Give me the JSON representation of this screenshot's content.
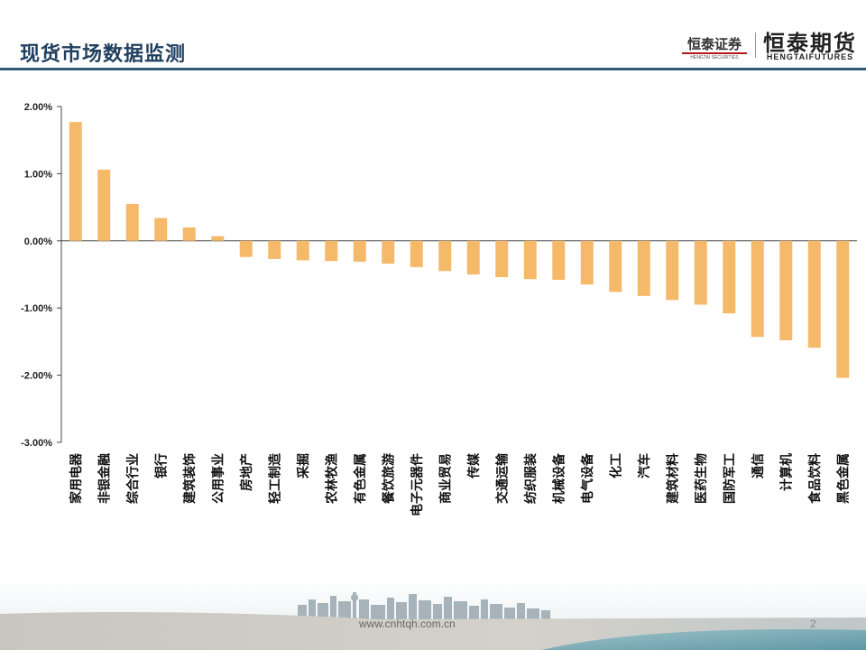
{
  "header": {
    "title": "现货市场数据监测",
    "logo_left": {
      "name": "恒泰证券",
      "sub": "HENGTAI SECURITIES"
    },
    "logo_right": {
      "name": "恒泰期货",
      "sub": "HENGTAIFUTURES"
    }
  },
  "chart_data": {
    "type": "bar",
    "title": "",
    "xlabel": "",
    "ylabel": "",
    "ylim": [
      -3,
      2
    ],
    "yticks": [
      2,
      1,
      0,
      -1,
      -2,
      -3
    ],
    "ytick_labels": [
      "2.00%",
      "1.00%",
      "0.00%",
      "-1.00%",
      "-2.00%",
      "-3.00%"
    ],
    "grid": false,
    "bar_color": "#f5b96a",
    "categories": [
      "家用电器",
      "非银金融",
      "综合行业",
      "银行",
      "建筑装饰",
      "公用事业",
      "房地产",
      "轻工制造",
      "采掘",
      "农林牧渔",
      "有色金属",
      "餐饮旅游",
      "电子元器件",
      "商业贸易",
      "传媒",
      "交通运输",
      "纺织服装",
      "机械设备",
      "电气设备",
      "化工",
      "汽车",
      "建筑材料",
      "医药生物",
      "国防军工",
      "通信",
      "计算机",
      "食品饮料",
      "黑色金属"
    ],
    "values": [
      1.77,
      1.06,
      0.55,
      0.34,
      0.2,
      0.07,
      -0.24,
      -0.27,
      -0.29,
      -0.3,
      -0.31,
      -0.34,
      -0.39,
      -0.45,
      -0.5,
      -0.54,
      -0.57,
      -0.58,
      -0.65,
      -0.76,
      -0.82,
      -0.88,
      -0.95,
      -1.08,
      -1.43,
      -1.48,
      -1.59,
      -2.04
    ]
  },
  "footer": {
    "url": "www.cnhtqh.com.cn",
    "page": "2"
  }
}
